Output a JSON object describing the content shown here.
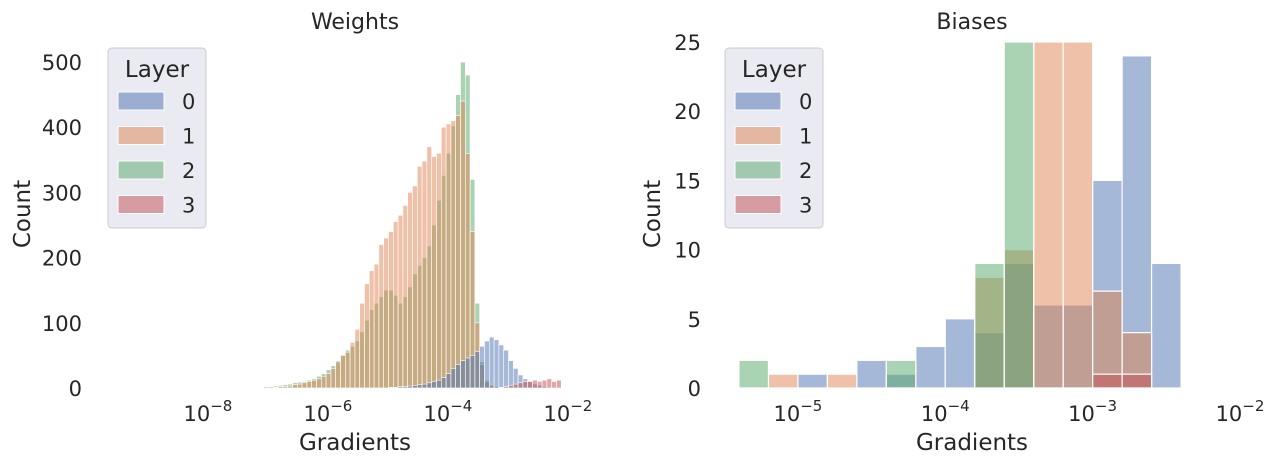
{
  "chart_data": [
    {
      "type": "histogram",
      "title": "Weights",
      "xlabel": "Gradients",
      "ylabel": "Count",
      "xscale": "log",
      "xlim": [
        2e-10,
        0.04
      ],
      "ylim": [
        0,
        520
      ],
      "yticks": [
        "0",
        "100",
        "200",
        "300",
        "400",
        "500"
      ],
      "xticks": [
        {
          "base": "10",
          "exp": "−8",
          "value": 1e-08
        },
        {
          "base": "10",
          "exp": "−6",
          "value": 1e-06
        },
        {
          "base": "10",
          "exp": "−4",
          "value": 0.0001
        },
        {
          "base": "10",
          "exp": "−2",
          "value": 0.01
        }
      ],
      "grid": false,
      "legend": {
        "title": "Layer",
        "placement": "top-left",
        "entries": [
          "0",
          "1",
          "2",
          "3"
        ]
      },
      "bins": {
        "log10_start": -7.23,
        "log10_width": 0.08
      },
      "series": [
        {
          "name": "2",
          "color": "#55a868",
          "values": [
            1,
            1,
            2,
            2,
            3,
            4,
            5,
            6,
            8,
            9,
            10,
            12,
            14,
            18,
            22,
            28,
            34,
            42,
            50,
            58,
            64,
            72,
            86,
            104,
            120,
            130,
            140,
            150,
            150,
            142,
            130,
            140,
            155,
            175,
            188,
            200,
            218,
            250,
            288,
            326,
            360,
            402,
            450,
            500,
            480,
            320,
            130,
            40,
            12,
            4,
            2,
            1,
            0,
            0,
            0,
            0,
            0,
            0,
            0,
            0,
            0,
            0,
            0,
            0
          ]
        },
        {
          "name": "1",
          "color": "#dd8452",
          "values": [
            0,
            0,
            0,
            0,
            1,
            2,
            2,
            3,
            5,
            6,
            8,
            10,
            12,
            14,
            18,
            22,
            30,
            40,
            50,
            55,
            70,
            90,
            130,
            160,
            180,
            190,
            220,
            230,
            240,
            255,
            265,
            280,
            300,
            310,
            340,
            348,
            370,
            355,
            360,
            400,
            405,
            410,
            418,
            440,
            360,
            240,
            100,
            36,
            10,
            4,
            2,
            1,
            0,
            0,
            0,
            0,
            0,
            0,
            0,
            0,
            0,
            0,
            0,
            0
          ]
        },
        {
          "name": "0",
          "color": "#4c72b0",
          "values": [
            0,
            0,
            0,
            0,
            0,
            0,
            0,
            0,
            0,
            0,
            0,
            0,
            0,
            0,
            0,
            0,
            0,
            0,
            0,
            0,
            0,
            0,
            0,
            0,
            0,
            0,
            0,
            0,
            1,
            1,
            2,
            2,
            3,
            4,
            5,
            6,
            8,
            10,
            12,
            16,
            22,
            30,
            36,
            42,
            46,
            50,
            56,
            64,
            72,
            78,
            74,
            66,
            58,
            42,
            30,
            20,
            14,
            10,
            6,
            4,
            2,
            1,
            0,
            0
          ]
        },
        {
          "name": "3",
          "color": "#c44e52",
          "values": [
            0,
            0,
            0,
            0,
            0,
            0,
            0,
            0,
            0,
            0,
            0,
            0,
            0,
            0,
            0,
            0,
            0,
            0,
            0,
            0,
            0,
            0,
            0,
            0,
            0,
            0,
            0,
            0,
            0,
            0,
            0,
            0,
            0,
            0,
            0,
            0,
            0,
            0,
            0,
            0,
            0,
            0,
            0,
            0,
            0,
            0,
            0,
            0,
            0,
            0,
            0,
            1,
            2,
            4,
            6,
            8,
            10,
            10,
            12,
            10,
            12,
            14,
            10,
            12
          ]
        }
      ]
    },
    {
      "type": "histogram",
      "title": "Biases",
      "xlabel": "Gradients",
      "ylabel": "Count",
      "xscale": "log",
      "xlim": [
        3.2e-06,
        0.01
      ],
      "ylim": [
        0,
        25
      ],
      "yticks": [
        "0",
        "5",
        "10",
        "15",
        "20",
        "25"
      ],
      "xticks": [
        {
          "base": "10",
          "exp": "−5",
          "value": 1e-05
        },
        {
          "base": "10",
          "exp": "−4",
          "value": 0.0001
        },
        {
          "base": "10",
          "exp": "−3",
          "value": 0.001
        },
        {
          "base": "10",
          "exp": "−2",
          "value": 0.01
        }
      ],
      "grid": false,
      "legend": {
        "title": "Layer",
        "placement": "top-left",
        "entries": [
          "0",
          "1",
          "2",
          "3"
        ]
      },
      "bins": {
        "log10_start": -5.4,
        "log10_width": 0.2
      },
      "series": [
        {
          "name": "0",
          "color": "#4c72b0",
          "values": [
            0,
            0,
            1,
            0,
            2,
            1,
            3,
            5,
            4,
            9,
            6,
            6,
            15,
            24,
            9
          ]
        },
        {
          "name": "1",
          "color": "#dd8452",
          "values": [
            0,
            1,
            0,
            1,
            0,
            0,
            0,
            0,
            8,
            10,
            26,
            26,
            7,
            4,
            0
          ]
        },
        {
          "name": "2",
          "color": "#55a868",
          "values": [
            2,
            0,
            0,
            0,
            0,
            2,
            0,
            0,
            9,
            26,
            0,
            0,
            0,
            0,
            0
          ]
        },
        {
          "name": "3",
          "color": "#c44e52",
          "values": [
            0,
            0,
            0,
            0,
            0,
            0,
            0,
            0,
            0,
            0,
            0,
            0,
            1,
            1,
            0
          ]
        }
      ]
    }
  ]
}
